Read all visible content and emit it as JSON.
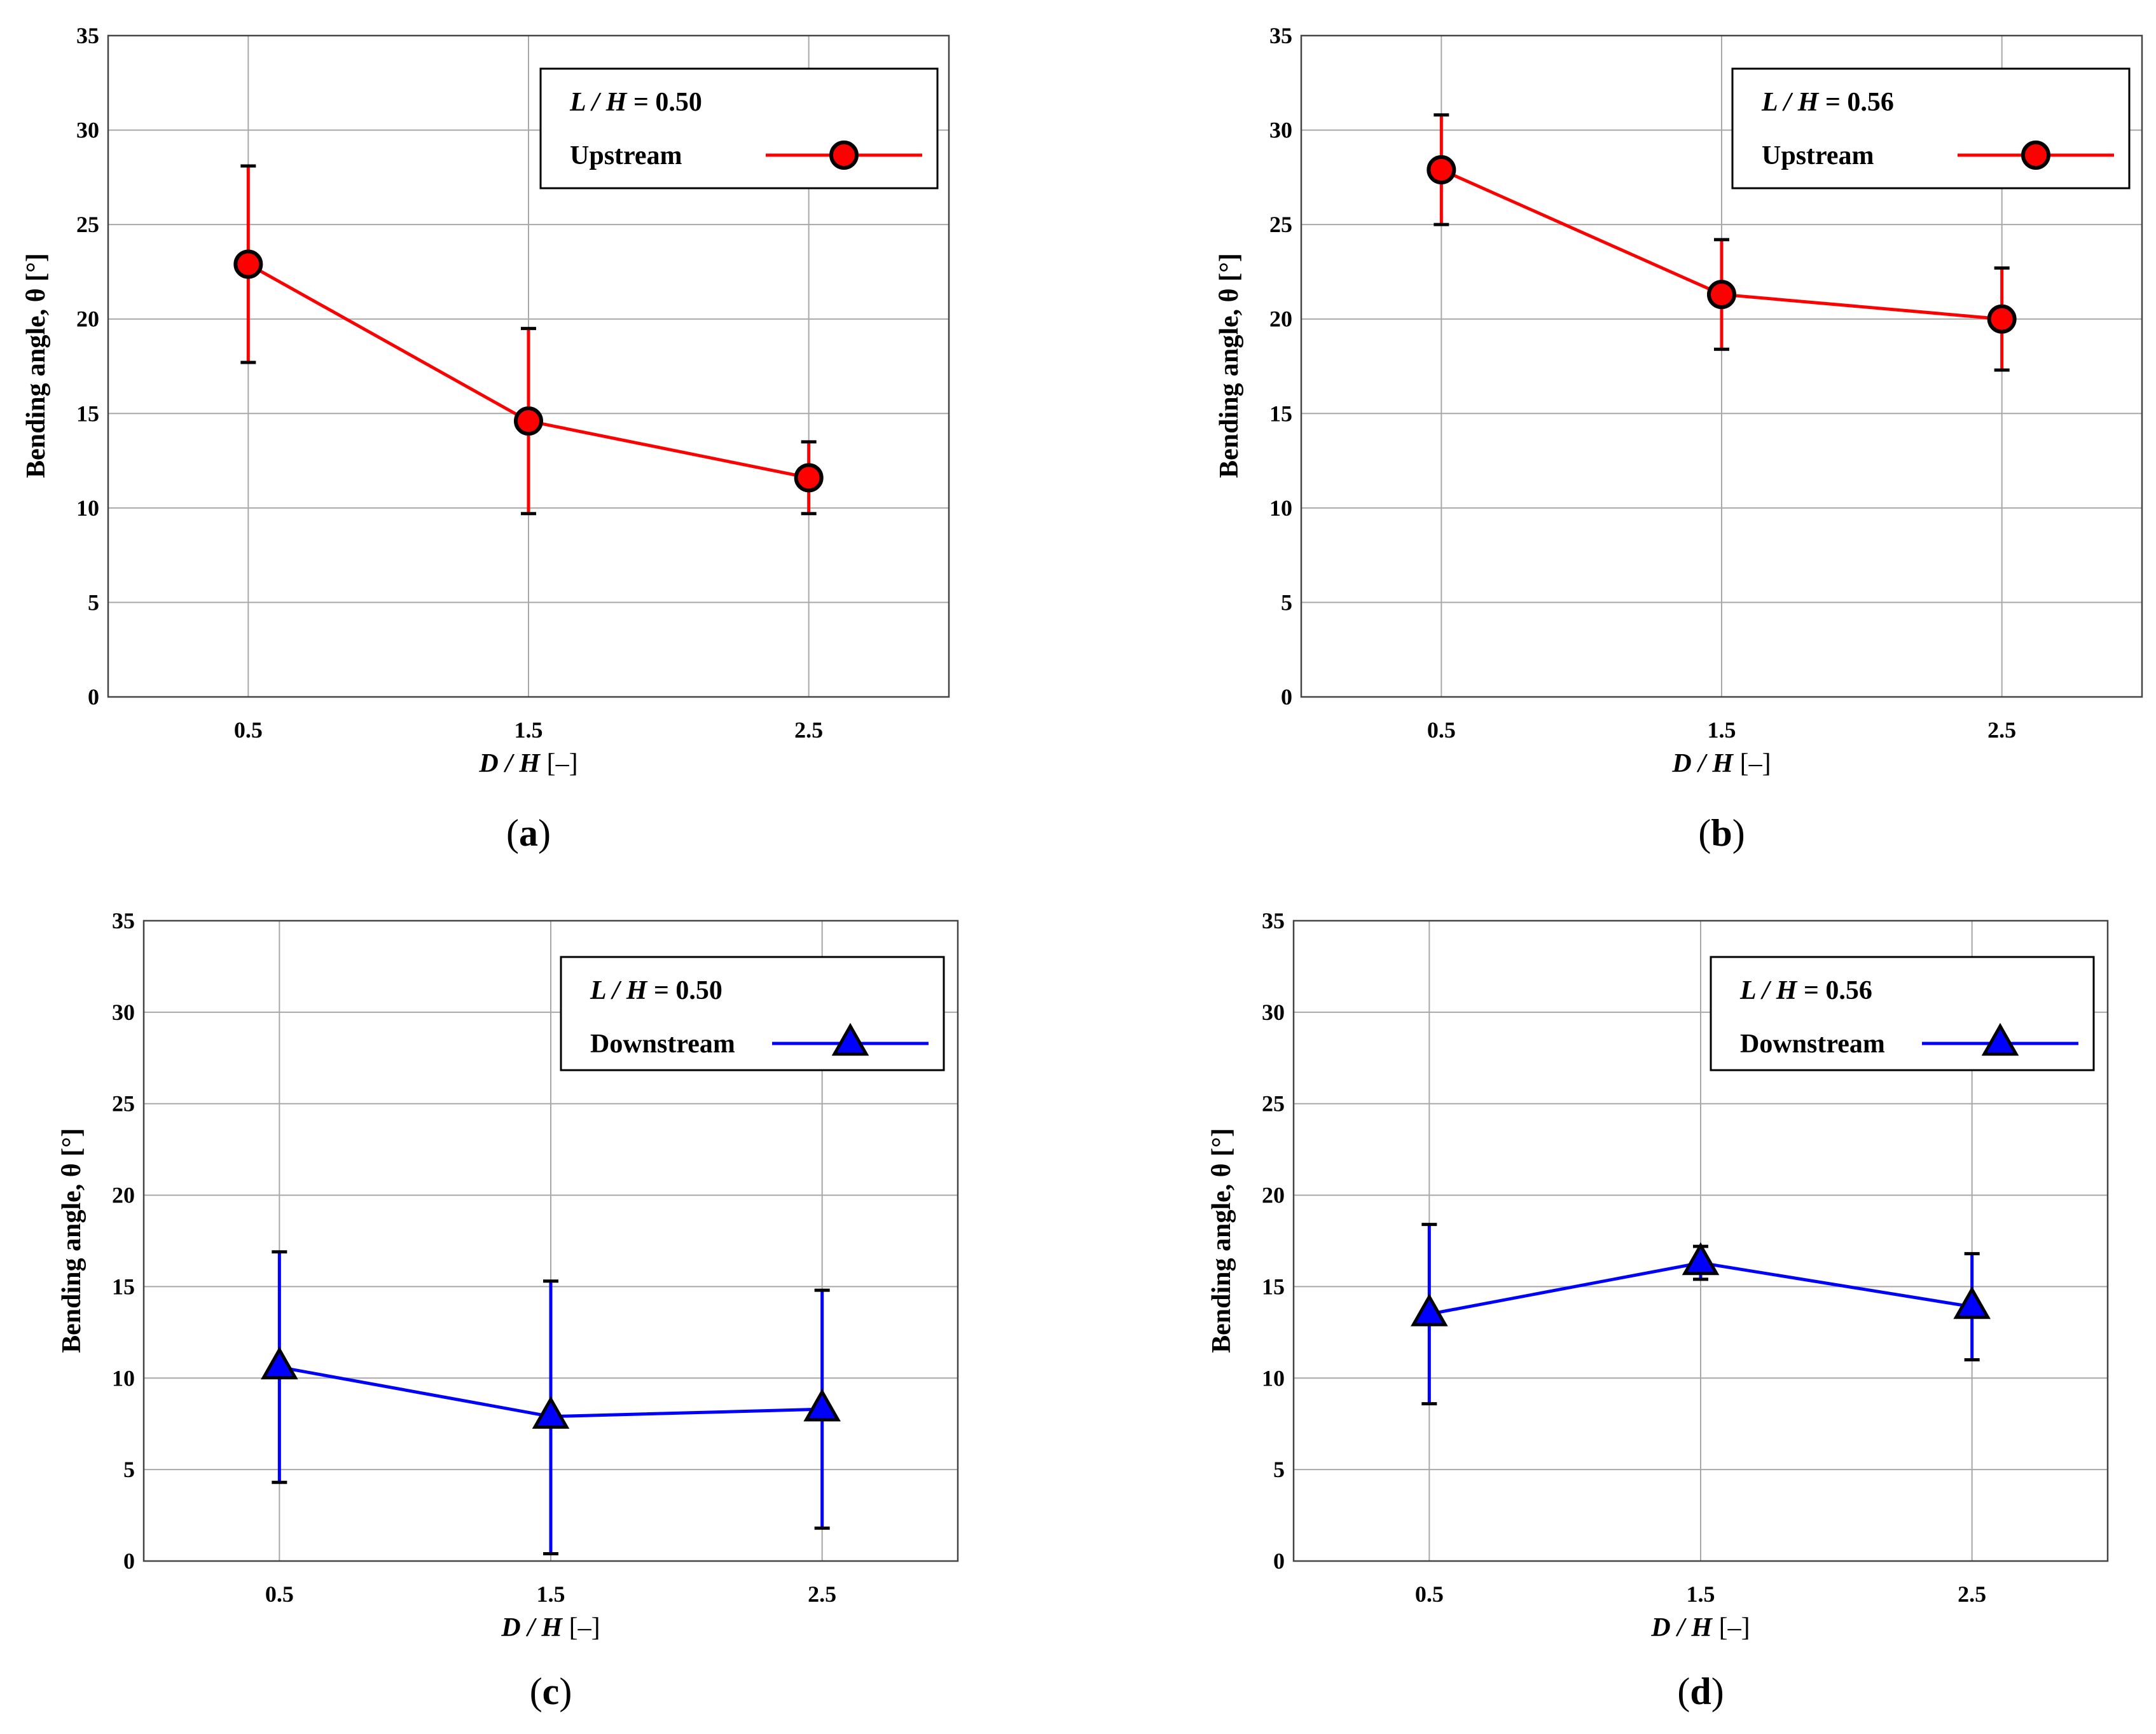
{
  "chart_data": [
    {
      "type": "line",
      "panel": "a",
      "caption": {
        "open": "(",
        "letter": "a",
        "close": ")"
      },
      "x": [
        0.5,
        1.5,
        2.5
      ],
      "xtick_labels": [
        "0.5",
        "1.5",
        "2.5"
      ],
      "xlim": [
        0,
        3
      ],
      "ylim": [
        0,
        35
      ],
      "yticks": [
        0,
        5,
        10,
        15,
        20,
        25,
        30,
        35
      ],
      "ylabel": "Bending angle, θ [°]",
      "xlabel": {
        "italic": "D / H",
        "rest": " [–]"
      },
      "grid": true,
      "legend": {
        "position": "top-right",
        "title_italic": "L / H",
        "title_rest": " = 0.50",
        "entry": "Upstream"
      },
      "series": [
        {
          "name": "Upstream",
          "values": [
            22.9,
            14.6,
            11.6
          ],
          "err_low": [
            17.7,
            9.7,
            9.7
          ],
          "err_high": [
            28.1,
            19.5,
            13.5
          ],
          "color": "#ff0000",
          "marker": "circle"
        }
      ]
    },
    {
      "type": "line",
      "panel": "b",
      "caption": {
        "open": "(",
        "letter": "b",
        "close": ")"
      },
      "x": [
        0.5,
        1.5,
        2.5
      ],
      "xtick_labels": [
        "0.5",
        "1.5",
        "2.5"
      ],
      "xlim": [
        0,
        3
      ],
      "ylim": [
        0,
        35
      ],
      "yticks": [
        0,
        5,
        10,
        15,
        20,
        25,
        30,
        35
      ],
      "ylabel": "Bending angle, θ [°]",
      "xlabel": {
        "italic": "D / H",
        "rest": " [–]"
      },
      "grid": true,
      "legend": {
        "position": "top-right",
        "title_italic": "L / H",
        "title_rest": " = 0.56",
        "entry": "Upstream"
      },
      "series": [
        {
          "name": "Upstream",
          "values": [
            27.9,
            21.3,
            20.0
          ],
          "err_low": [
            25.0,
            18.4,
            17.3
          ],
          "err_high": [
            30.8,
            24.2,
            22.7
          ],
          "color": "#ff0000",
          "marker": "circle"
        }
      ]
    },
    {
      "type": "line",
      "panel": "c",
      "caption": {
        "open": "(",
        "letter": "c",
        "close": ")"
      },
      "x": [
        0.5,
        1.5,
        2.5
      ],
      "xtick_labels": [
        "0.5",
        "1.5",
        "2.5"
      ],
      "xlim": [
        0,
        3
      ],
      "ylim": [
        0,
        35
      ],
      "yticks": [
        0,
        5,
        10,
        15,
        20,
        25,
        30,
        35
      ],
      "ylabel": "Bending angle, θ [°]",
      "xlabel": {
        "italic": "D / H",
        "rest": " [–]"
      },
      "grid": true,
      "legend": {
        "position": "top-right",
        "title_italic": "L / H",
        "title_rest": " = 0.50",
        "entry": "Downstream"
      },
      "series": [
        {
          "name": "Downstream",
          "values": [
            10.6,
            7.9,
            8.3
          ],
          "err_low": [
            4.3,
            0.4,
            1.8
          ],
          "err_high": [
            16.9,
            15.3,
            14.8
          ],
          "color": "#0000ff",
          "marker": "triangle"
        }
      ]
    },
    {
      "type": "line",
      "panel": "d",
      "caption": {
        "open": "(",
        "letter": "d",
        "close": ")"
      },
      "x": [
        0.5,
        1.5,
        2.5
      ],
      "xtick_labels": [
        "0.5",
        "1.5",
        "2.5"
      ],
      "xlim": [
        0,
        3
      ],
      "ylim": [
        0,
        35
      ],
      "yticks": [
        0,
        5,
        10,
        15,
        20,
        25,
        30,
        35
      ],
      "ylabel": "Bending angle, θ [°]",
      "xlabel": {
        "italic": "D / H",
        "rest": " [–]"
      },
      "grid": true,
      "legend": {
        "position": "top-right",
        "title_italic": "L / H",
        "title_rest": " = 0.56",
        "entry": "Downstream"
      },
      "series": [
        {
          "name": "Downstream",
          "values": [
            13.5,
            16.3,
            13.9
          ],
          "err_low": [
            8.6,
            15.4,
            11.0
          ],
          "err_high": [
            18.4,
            17.2,
            16.8
          ],
          "color": "#0000ff",
          "marker": "triangle"
        }
      ]
    }
  ]
}
